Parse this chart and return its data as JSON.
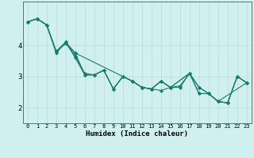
{
  "xlabel": "Humidex (Indice chaleur)",
  "ylabel": "",
  "bg_color": "#d0f0f0",
  "line_color": "#1a7a6e",
  "grid_color": "#b8dcd8",
  "xlim": [
    -0.5,
    23.5
  ],
  "ylim": [
    1.5,
    5.4
  ],
  "yticks": [
    2,
    3,
    4
  ],
  "xticks": [
    0,
    1,
    2,
    3,
    4,
    5,
    6,
    7,
    8,
    9,
    10,
    11,
    12,
    13,
    14,
    15,
    16,
    17,
    18,
    19,
    20,
    21,
    22,
    23
  ],
  "series": [
    {
      "x": [
        0,
        1,
        2,
        3,
        4,
        5,
        6,
        7,
        8,
        9,
        10,
        11,
        12,
        13,
        14,
        15,
        16,
        17,
        18,
        19,
        20,
        21,
        22,
        23
      ],
      "y": [
        4.75,
        4.85,
        4.65,
        3.8,
        4.1,
        3.75,
        3.05,
        3.05,
        3.2,
        2.6,
        3.0,
        2.85,
        2.65,
        2.6,
        2.85,
        2.65,
        2.7,
        3.1,
        2.65,
        2.45,
        2.2,
        2.15,
        3.0,
        2.8
      ]
    },
    {
      "x": [
        0,
        1,
        2,
        3,
        4,
        5,
        6,
        7,
        8,
        9,
        10,
        11,
        12,
        13,
        14,
        15,
        16,
        17,
        18,
        19,
        20,
        21,
        22,
        23
      ],
      "y": [
        4.75,
        4.85,
        4.65,
        3.8,
        4.1,
        3.6,
        3.05,
        3.05,
        3.2,
        2.6,
        3.0,
        2.85,
        2.65,
        2.6,
        2.85,
        2.65,
        2.65,
        3.1,
        2.45,
        2.45,
        2.2,
        2.15,
        3.0,
        2.8
      ]
    },
    {
      "x": [
        0,
        1,
        2,
        3,
        4,
        5,
        6,
        7,
        8,
        9,
        10,
        11,
        12,
        13,
        14,
        15,
        17,
        18,
        19,
        20,
        21,
        22,
        23
      ],
      "y": [
        4.75,
        4.85,
        4.65,
        3.75,
        4.1,
        3.65,
        3.1,
        3.05,
        3.2,
        2.6,
        3.0,
        2.85,
        2.65,
        2.6,
        2.85,
        2.65,
        3.1,
        2.65,
        2.45,
        2.2,
        2.15,
        3.0,
        2.8
      ]
    },
    {
      "x": [
        0,
        1,
        2,
        3,
        4,
        5,
        11,
        12,
        13,
        14,
        15,
        17,
        18,
        19,
        20,
        23
      ],
      "y": [
        4.75,
        4.85,
        4.65,
        3.8,
        4.05,
        3.75,
        2.85,
        2.65,
        2.6,
        2.55,
        2.65,
        3.1,
        2.45,
        2.45,
        2.2,
        2.8
      ]
    }
  ]
}
